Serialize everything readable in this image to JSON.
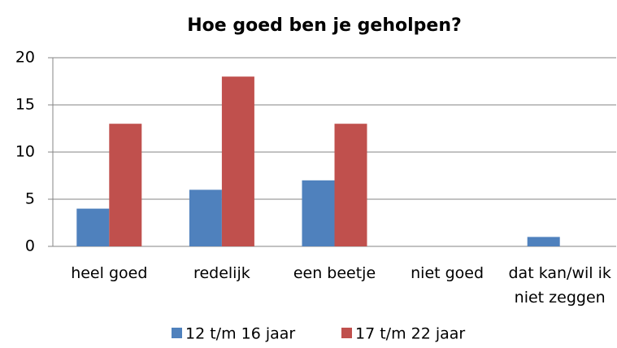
{
  "chart_data": {
    "type": "bar",
    "title": "Hoe goed ben je geholpen?",
    "categories": [
      "heel goed",
      "redelijk",
      "een beetje",
      "niet goed",
      "dat kan/wil ik niet zeggen"
    ],
    "series": [
      {
        "name": "12 t/m 16 jaar",
        "color": "#4f81bd",
        "values": [
          4,
          6,
          7,
          0,
          1
        ]
      },
      {
        "name": "17 t/m 22 jaar",
        "color": "#c0504d",
        "values": [
          13,
          18,
          13,
          0,
          0
        ]
      }
    ],
    "ylim": [
      0,
      20
    ],
    "yticks": [
      0,
      5,
      10,
      15,
      20
    ],
    "grid": true,
    "legend": "bottom"
  }
}
